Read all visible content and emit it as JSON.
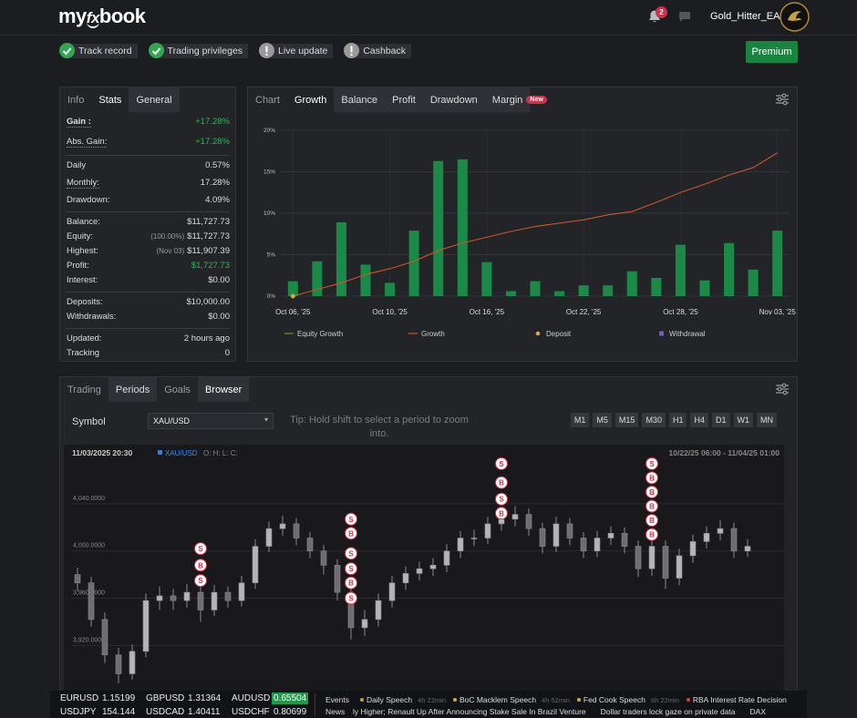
{
  "header": {
    "logo": [
      "my",
      "fx",
      "book"
    ],
    "notifications": 2,
    "username": "Gold_Hitter_EA"
  },
  "badges": [
    {
      "label": "Track record",
      "ok": true
    },
    {
      "label": "Trading privileges",
      "ok": true
    },
    {
      "label": "Live update",
      "ok": false
    },
    {
      "label": "Cashback",
      "ok": false
    }
  ],
  "premium": "Premium",
  "stats": {
    "tabs": [
      "Info",
      "Stats",
      "General"
    ],
    "groups": [
      [
        {
          "label": "Gain :",
          "value": "+17.28%",
          "positive": true,
          "dotted": true
        },
        {
          "label": "Abs. Gain:",
          "value": "+17.28%",
          "positive": true,
          "dotted": true
        }
      ],
      [
        {
          "label": "Daily",
          "value": "0.57%"
        },
        {
          "label": "Monthly:",
          "value": "17.28%",
          "dotted": true
        },
        {
          "label": "Drawdown:",
          "value": "4.09%"
        }
      ],
      [
        {
          "label": "Balance:",
          "value": "$11,727.73"
        },
        {
          "label": "Equity:",
          "note": "(100.00%)",
          "value": "$11,727.73"
        },
        {
          "label": "Highest:",
          "note": "(Nov 03)",
          "value": "$11,907.39"
        },
        {
          "label": "Profit:",
          "value": "$1,727.73",
          "positive": true
        },
        {
          "label": "Interest:",
          "value": "$0.00"
        }
      ],
      [
        {
          "label": "Deposits:",
          "value": "$10,000.00"
        },
        {
          "label": "Withdrawals:",
          "value": "$0.00"
        }
      ],
      [
        {
          "label": "Updated:",
          "value": "2 hours ago"
        },
        {
          "label": "Tracking",
          "value": "0"
        }
      ]
    ]
  },
  "chart_data": [
    {
      "type": "bar",
      "tabs": [
        "Chart",
        "Growth",
        "Balance",
        "Profit",
        "Drawdown",
        "Margin"
      ],
      "new_badge": "New",
      "categories": [
        "Oct 06, '25",
        null,
        null,
        null,
        "Oct 10, '25",
        null,
        null,
        null,
        "Oct 16, '25",
        null,
        null,
        null,
        "Oct 22, '25",
        null,
        null,
        null,
        "Oct 28, '25",
        null,
        null,
        null,
        "Nov 03, '25"
      ],
      "bars": {
        "color": "#1b8a48",
        "values": [
          1.8,
          4.2,
          8.9,
          3.8,
          1.6,
          7.9,
          16.3,
          16.5,
          4.1,
          0.6,
          1.8,
          0.6,
          1.3,
          1.3,
          3.0,
          2.2,
          6.2,
          1.9,
          6.4,
          3.2,
          7.9
        ]
      },
      "series": [
        {
          "name": "Equity Growth",
          "color": "#7d8a2c",
          "kind": "line"
        },
        {
          "name": "Growth",
          "color": "#c8552a",
          "kind": "line",
          "values": [
            0,
            0.8,
            1.6,
            2.6,
            3.3,
            4.2,
            5.5,
            6.4,
            7.1,
            7.8,
            8.4,
            8.8,
            9.2,
            9.8,
            10.2,
            11.3,
            12.5,
            13.5,
            14.6,
            15.5,
            17.28
          ]
        },
        {
          "name": "Deposit",
          "color": "#e0a43c",
          "kind": "dot",
          "values": [
            0,
            null,
            null,
            null,
            null,
            null,
            null,
            null,
            null,
            null,
            null,
            null,
            null,
            null,
            null,
            null,
            null,
            null,
            null,
            null,
            null
          ]
        },
        {
          "name": "Withdrawal",
          "color": "#6c5ad0",
          "kind": "square"
        }
      ],
      "ylim": [
        0,
        20
      ],
      "yticks": [
        {
          "value": 0,
          "label": "0%"
        },
        {
          "value": 5,
          "label": "5%"
        },
        {
          "value": 10,
          "label": "10%"
        },
        {
          "value": 15,
          "label": "15%"
        },
        {
          "value": 20,
          "label": "20%"
        }
      ],
      "grid": true
    },
    {
      "type": "candlestick",
      "tabs": [
        "Trading",
        "Periods",
        "Goals",
        "Browser"
      ],
      "symbol_label": "Symbol",
      "symbol": "XAU/USD",
      "tip": "Tip: Hold shift to select a period to zoom into.",
      "timeframes": [
        "M1",
        "M5",
        "M15",
        "M30",
        "H1",
        "H4",
        "D1",
        "W1",
        "MN"
      ],
      "datetime": "11/03/2025 20:30",
      "legend_symbol": "XAU/USD",
      "ohlc_label": "O: H: L: C:",
      "range": "10/22/25 06:00 - 11/04/25 01:00",
      "ylim": [
        3884,
        4077
      ],
      "yticks": [
        {
          "value": 4040,
          "label": "4,040.0000"
        },
        {
          "value": 4000,
          "label": "4,000.0000"
        },
        {
          "value": 3960,
          "label": "3,960.0000"
        },
        {
          "value": 3920,
          "label": "3,920.0000"
        }
      ],
      "grid": true,
      "candles": [
        [
          3980,
          3986,
          3966,
          3973
        ],
        [
          3973,
          3978,
          3936,
          3942
        ],
        [
          3942,
          3948,
          3905,
          3912
        ],
        [
          3912,
          3918,
          3888,
          3896
        ],
        [
          3896,
          3921,
          3891,
          3915
        ],
        [
          3915,
          3964,
          3910,
          3958
        ],
        [
          3958,
          3970,
          3950,
          3962
        ],
        [
          3962,
          3968,
          3950,
          3958
        ],
        [
          3958,
          3972,
          3952,
          3965
        ],
        [
          3965,
          3970,
          3940,
          3950
        ],
        [
          3950,
          3971,
          3945,
          3965
        ],
        [
          3965,
          3970,
          3952,
          3958
        ],
        [
          3958,
          3979,
          3953,
          3973
        ],
        [
          3973,
          4010,
          3968,
          4004
        ],
        [
          4004,
          4025,
          3999,
          4019
        ],
        [
          4019,
          4030,
          4013,
          4023
        ],
        [
          4023,
          4028,
          4005,
          4011
        ],
        [
          4011,
          4016,
          3994,
          4000
        ],
        [
          4000,
          4005,
          3980,
          3988
        ],
        [
          3988,
          3993,
          3958,
          3965
        ],
        [
          3965,
          3970,
          3925,
          3935
        ],
        [
          3935,
          3950,
          3928,
          3942
        ],
        [
          3942,
          3964,
          3936,
          3958
        ],
        [
          3958,
          3979,
          3952,
          3973
        ],
        [
          3973,
          3987,
          3967,
          3981
        ],
        [
          3981,
          3991,
          3975,
          3985
        ],
        [
          3985,
          3994,
          3979,
          3988
        ],
        [
          3988,
          4006,
          3982,
          4000
        ],
        [
          4000,
          4017,
          3994,
          4011
        ],
        [
          4011,
          4018,
          4004,
          4011
        ],
        [
          4011,
          4029,
          4006,
          4023
        ],
        [
          4023,
          4033,
          4017,
          4027
        ],
        [
          4027,
          4038,
          4021,
          4031
        ],
        [
          4031,
          4036,
          4013,
          4019
        ],
        [
          4019,
          4024,
          3998,
          4004
        ],
        [
          4004,
          4029,
          3999,
          4023
        ],
        [
          4023,
          4028,
          4005,
          4011
        ],
        [
          4011,
          4016,
          3994,
          4000
        ],
        [
          4000,
          4017,
          3995,
          4011
        ],
        [
          4011,
          4021,
          4005,
          4015
        ],
        [
          4015,
          4020,
          3998,
          4004
        ],
        [
          4004,
          4009,
          3978,
          3985
        ],
        [
          3985,
          4010,
          3979,
          4004
        ],
        [
          4004,
          4009,
          3968,
          3977
        ],
        [
          3977,
          4002,
          3971,
          3996
        ],
        [
          3996,
          4014,
          3990,
          4008
        ],
        [
          4008,
          4021,
          4002,
          4015
        ],
        [
          4015,
          4026,
          4009,
          4019
        ],
        [
          4019,
          4024,
          3994,
          4000
        ],
        [
          4000,
          4010,
          3995,
          4004
        ]
      ],
      "trades": [
        {
          "side": "S",
          "candle": 9,
          "price": 4002
        },
        {
          "side": "B",
          "candle": 9,
          "price": 3988
        },
        {
          "side": "S",
          "candle": 9,
          "price": 3975
        },
        {
          "side": "S",
          "candle": 20,
          "price": 4027
        },
        {
          "side": "B",
          "candle": 20,
          "price": 4015
        },
        {
          "side": "S",
          "candle": 20,
          "price": 3998
        },
        {
          "side": "S",
          "candle": 20,
          "price": 3985
        },
        {
          "side": "B",
          "candle": 20,
          "price": 3973
        },
        {
          "side": "S",
          "candle": 20,
          "price": 3960
        },
        {
          "side": "S",
          "candle": 31,
          "price": 4074
        },
        {
          "side": "B",
          "candle": 31,
          "price": 4058
        },
        {
          "side": "S",
          "candle": 31,
          "price": 4044
        },
        {
          "side": "B",
          "candle": 31,
          "price": 4032
        },
        {
          "side": "S",
          "candle": 42,
          "price": 4074
        },
        {
          "side": "B",
          "candle": 42,
          "price": 4062
        },
        {
          "side": "B",
          "candle": 42,
          "price": 4050
        },
        {
          "side": "B",
          "candle": 42,
          "price": 4038
        },
        {
          "side": "B",
          "candle": 42,
          "price": 4026
        },
        {
          "side": "B",
          "candle": 42,
          "price": 4014
        }
      ]
    }
  ],
  "ticker": {
    "quotes": [
      {
        "symbol": "EURUSD",
        "price": "1.15199"
      },
      {
        "symbol": "GBPUSD",
        "price": "1.31364"
      },
      {
        "symbol": "AUDUSD",
        "price": "0.65504",
        "highlight": true
      },
      {
        "symbol": "USDJPY",
        "price": "154.144"
      },
      {
        "symbol": "USDCAD",
        "price": "1.40411"
      },
      {
        "symbol": "USDCHF",
        "price": "0.80699"
      }
    ],
    "events_label": "Events",
    "events": [
      {
        "title": "Daily Speech",
        "time": "4h 22min",
        "color": "#c9a227"
      },
      {
        "title": "BoC Macklem Speech",
        "time": "4h 52min",
        "color": "#e0a43c"
      },
      {
        "title": "Fed Cook Speech",
        "time": "6h 22min",
        "color": "#e0a43c"
      },
      {
        "title": "RBA Interest Rate Decision",
        "color": "#e03b3b"
      }
    ],
    "news_label": "News",
    "news": [
      "ly Higher; Renault Up After Announcing Stake Sale In Brazil Venture",
      "Dollar traders lock gaze on private data",
      "DAX"
    ]
  }
}
